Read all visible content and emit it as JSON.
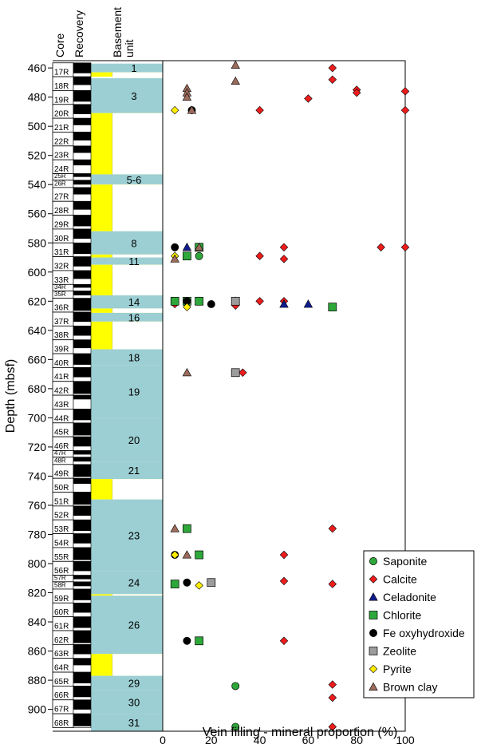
{
  "chart_data": {
    "type": "scatter",
    "ylabel": "Depth (mbsf)",
    "xlabel": "Vein filling - mineral proportion (%)",
    "xlim": [
      0,
      100
    ],
    "ylim": [
      455,
      915
    ],
    "y_reversed": true,
    "xticks": [
      0,
      20,
      40,
      60,
      80,
      100
    ],
    "yticks": [
      460,
      480,
      500,
      520,
      540,
      560,
      580,
      600,
      620,
      640,
      660,
      680,
      700,
      720,
      740,
      760,
      780,
      800,
      820,
      840,
      860,
      880,
      900
    ],
    "columns": {
      "core": "Core",
      "recovery": "Recovery",
      "unit": "Basement\nunit"
    },
    "legend_position": "bottom-right",
    "cores": [
      {
        "label": "17R",
        "top": 456.5,
        "base": 466.0,
        "rec": 0.75
      },
      {
        "label": "18R",
        "top": 466.0,
        "base": 475.5,
        "rec": 0.6
      },
      {
        "label": "19R",
        "top": 475.5,
        "base": 485.0,
        "rec": 0.8
      },
      {
        "label": "20R",
        "top": 485.0,
        "base": 494.5,
        "rec": 0.7
      },
      {
        "label": "21R",
        "top": 494.5,
        "base": 504.0,
        "rec": 0.5
      },
      {
        "label": "22R",
        "top": 504.0,
        "base": 513.5,
        "rec": 0.6
      },
      {
        "label": "23R",
        "top": 513.5,
        "base": 523.0,
        "rec": 0.5
      },
      {
        "label": "24R",
        "top": 523.0,
        "base": 532.5,
        "rec": 0.4
      },
      {
        "label": "25R",
        "top": 532.5,
        "base": 537.0,
        "rec": 0.5
      },
      {
        "label": "26R",
        "top": 537.0,
        "base": 542.0,
        "rec": 0.6
      },
      {
        "label": "27R",
        "top": 542.0,
        "base": 551.5,
        "rec": 0.5
      },
      {
        "label": "28R",
        "top": 551.5,
        "base": 561.0,
        "rec": 0.6
      },
      {
        "label": "29R",
        "top": 561.0,
        "base": 570.5,
        "rec": 0.8
      },
      {
        "label": "30R",
        "top": 570.5,
        "base": 580.0,
        "rec": 0.7
      },
      {
        "label": "31R",
        "top": 580.0,
        "base": 589.5,
        "rec": 0.8
      },
      {
        "label": "32R",
        "top": 589.5,
        "base": 599.0,
        "rec": 0.7
      },
      {
        "label": "33R",
        "top": 599.0,
        "base": 608.5,
        "rec": 0.6
      },
      {
        "label": "34R",
        "top": 608.5,
        "base": 613.0,
        "rec": 0.5
      },
      {
        "label": "35R",
        "top": 613.0,
        "base": 618.0,
        "rec": 0.6
      },
      {
        "label": "36R",
        "top": 618.0,
        "base": 627.5,
        "rec": 0.9
      },
      {
        "label": "37R",
        "top": 627.5,
        "base": 637.0,
        "rec": 0.7
      },
      {
        "label": "38R",
        "top": 637.0,
        "base": 646.5,
        "rec": 0.7
      },
      {
        "label": "39R",
        "top": 646.5,
        "base": 656.0,
        "rec": 0.6
      },
      {
        "label": "40R",
        "top": 656.0,
        "base": 665.5,
        "rec": 0.8
      },
      {
        "label": "41R",
        "top": 665.5,
        "base": 675.0,
        "rec": 0.7
      },
      {
        "label": "42R",
        "top": 675.0,
        "base": 684.5,
        "rec": 0.9
      },
      {
        "label": "43R",
        "top": 684.5,
        "base": 694.0,
        "rec": 0.3
      },
      {
        "label": "44R",
        "top": 694.0,
        "base": 703.5,
        "rec": 0.8
      },
      {
        "label": "45R",
        "top": 703.5,
        "base": 713.0,
        "rec": 0.9
      },
      {
        "label": "46R",
        "top": 713.0,
        "base": 722.5,
        "rec": 0.7
      },
      {
        "label": "47R",
        "top": 722.5,
        "base": 727.0,
        "rec": 0.6
      },
      {
        "label": "48R",
        "top": 727.0,
        "base": 732.0,
        "rec": 0.6
      },
      {
        "label": "49R",
        "top": 732.0,
        "base": 741.5,
        "rec": 0.9
      },
      {
        "label": "50R",
        "top": 741.5,
        "base": 751.0,
        "rec": 0.4
      },
      {
        "label": "51R",
        "top": 751.0,
        "base": 760.5,
        "rec": 0.9
      },
      {
        "label": "52R",
        "top": 760.5,
        "base": 770.0,
        "rec": 0.7
      },
      {
        "label": "53R",
        "top": 770.0,
        "base": 779.5,
        "rec": 0.8
      },
      {
        "label": "54R",
        "top": 779.5,
        "base": 789.0,
        "rec": 0.7
      },
      {
        "label": "55R",
        "top": 789.0,
        "base": 798.5,
        "rec": 0.9
      },
      {
        "label": "56R",
        "top": 798.5,
        "base": 808.0,
        "rec": 0.7
      },
      {
        "label": "57R",
        "top": 808.0,
        "base": 812.5,
        "rec": 0.6
      },
      {
        "label": "58R",
        "top": 812.5,
        "base": 817.5,
        "rec": 0.6
      },
      {
        "label": "59R",
        "top": 817.5,
        "base": 827.0,
        "rec": 0.8
      },
      {
        "label": "60R",
        "top": 827.0,
        "base": 836.5,
        "rec": 0.7
      },
      {
        "label": "61R",
        "top": 836.5,
        "base": 846.0,
        "rec": 0.8
      },
      {
        "label": "62R",
        "top": 846.0,
        "base": 855.5,
        "rec": 0.9
      },
      {
        "label": "63R",
        "top": 855.5,
        "base": 865.0,
        "rec": 0.7
      },
      {
        "label": "64R",
        "top": 865.0,
        "base": 874.5,
        "rec": 0.5
      },
      {
        "label": "65R",
        "top": 874.5,
        "base": 884.0,
        "rec": 0.8
      },
      {
        "label": "66R",
        "top": 884.0,
        "base": 893.5,
        "rec": 0.8
      },
      {
        "label": "67R",
        "top": 893.5,
        "base": 903.0,
        "rec": 0.7
      },
      {
        "label": "68R",
        "top": 903.0,
        "base": 912.5,
        "rec": 0.9
      }
    ],
    "units": [
      {
        "label": "1",
        "top": 457,
        "base": 463,
        "color": "#9ccfd3"
      },
      {
        "label": "",
        "top": 463,
        "base": 466,
        "color": "#ffff00"
      },
      {
        "label": "3",
        "top": 467,
        "base": 491,
        "color": "#9ccfd3"
      },
      {
        "label": "",
        "top": 491,
        "base": 533,
        "color": "#ffff00"
      },
      {
        "label": "5-6",
        "top": 533,
        "base": 540,
        "color": "#9ccfd3"
      },
      {
        "label": "",
        "top": 540,
        "base": 572,
        "color": "#ffff00"
      },
      {
        "label": "8",
        "top": 572,
        "base": 588,
        "color": "#9ccfd3"
      },
      {
        "label": "",
        "top": 588,
        "base": 590,
        "color": "#ffff00"
      },
      {
        "label": "11",
        "top": 590,
        "base": 595,
        "color": "#9ccfd3"
      },
      {
        "label": "",
        "top": 595,
        "base": 616,
        "color": "#ffff00"
      },
      {
        "label": "14",
        "top": 616,
        "base": 625,
        "color": "#9ccfd3"
      },
      {
        "label": "",
        "top": 625,
        "base": 628,
        "color": "#ffff00"
      },
      {
        "label": "16",
        "top": 628,
        "base": 634,
        "color": "#9ccfd3"
      },
      {
        "label": "",
        "top": 634,
        "base": 653,
        "color": "#ffff00"
      },
      {
        "label": "18",
        "top": 653,
        "base": 664,
        "color": "#9ccfd3"
      },
      {
        "label": "19",
        "top": 664,
        "base": 700,
        "color": "#9ccfd3"
      },
      {
        "label": "20",
        "top": 700,
        "base": 730,
        "color": "#9ccfd3"
      },
      {
        "label": "21",
        "top": 730,
        "base": 742,
        "color": "#9ccfd3"
      },
      {
        "label": "",
        "top": 742,
        "base": 756,
        "color": "#ffff00"
      },
      {
        "label": "23",
        "top": 756,
        "base": 805,
        "color": "#9ccfd3"
      },
      {
        "label": "24",
        "top": 805,
        "base": 821,
        "color": "#9ccfd3"
      },
      {
        "label": "",
        "top": 821,
        "base": 822,
        "color": "#ffff00"
      },
      {
        "label": "26",
        "top": 822,
        "base": 862,
        "color": "#9ccfd3"
      },
      {
        "label": "",
        "top": 862,
        "base": 877,
        "color": "#ffff00"
      },
      {
        "label": "29",
        "top": 877,
        "base": 887,
        "color": "#9ccfd3"
      },
      {
        "label": "30",
        "top": 887,
        "base": 903,
        "color": "#9ccfd3"
      },
      {
        "label": "31",
        "top": 903,
        "base": 915,
        "color": "#9ccfd3"
      }
    ],
    "series": [
      {
        "name": "Saponite",
        "marker": "circle",
        "color": "#2ea83a",
        "points": [
          [
            10,
            589
          ],
          [
            15,
            589
          ],
          [
            10,
            776
          ],
          [
            30,
            884
          ],
          [
            30,
            912
          ]
        ]
      },
      {
        "name": "Calcite",
        "marker": "diamond",
        "color": "#ee1c1c",
        "points": [
          [
            70,
            460
          ],
          [
            70,
            468
          ],
          [
            80,
            475
          ],
          [
            80,
            477
          ],
          [
            100,
            476
          ],
          [
            60,
            481
          ],
          [
            40,
            489
          ],
          [
            100,
            489
          ],
          [
            50,
            583
          ],
          [
            90,
            583
          ],
          [
            100,
            583
          ],
          [
            40,
            589
          ],
          [
            50,
            591
          ],
          [
            5,
            622
          ],
          [
            30,
            621
          ],
          [
            40,
            620
          ],
          [
            50,
            620
          ],
          [
            30,
            623
          ],
          [
            33,
            669
          ],
          [
            70,
            776
          ],
          [
            50,
            794
          ],
          [
            50,
            812
          ],
          [
            70,
            814
          ],
          [
            50,
            853
          ],
          [
            70,
            883
          ],
          [
            70,
            892
          ],
          [
            70,
            912
          ]
        ]
      },
      {
        "name": "Celadonite",
        "marker": "triangle",
        "color": "#101c8c",
        "points": [
          [
            10,
            583
          ],
          [
            15,
            620
          ],
          [
            30,
            620
          ],
          [
            50,
            622
          ],
          [
            60,
            622
          ]
        ]
      },
      {
        "name": "Chlorite",
        "marker": "square",
        "color": "#2ea83a",
        "points": [
          [
            15,
            583
          ],
          [
            10,
            589
          ],
          [
            5,
            620
          ],
          [
            10,
            620
          ],
          [
            15,
            620
          ],
          [
            70,
            624
          ],
          [
            10,
            776
          ],
          [
            15,
            794
          ],
          [
            5,
            814
          ],
          [
            15,
            853
          ]
        ]
      },
      {
        "name": "Fe oxyhydroxide",
        "marker": "circle",
        "color": "#000000",
        "points": [
          [
            12,
            489
          ],
          [
            5,
            583
          ],
          [
            10,
            620
          ],
          [
            20,
            622
          ],
          [
            5,
            794
          ],
          [
            10,
            813
          ],
          [
            10,
            853
          ]
        ]
      },
      {
        "name": "Zeolite",
        "marker": "square",
        "color": "#9c9c9c",
        "points": [
          [
            30,
            620
          ],
          [
            30,
            669
          ],
          [
            20,
            813
          ]
        ]
      },
      {
        "name": "Pyrite",
        "marker": "diamond",
        "color": "#ffee00",
        "points": [
          [
            5,
            489
          ],
          [
            5,
            589
          ],
          [
            10,
            624
          ],
          [
            5,
            794
          ],
          [
            15,
            815
          ]
        ]
      },
      {
        "name": "Brown clay",
        "marker": "triangle",
        "color": "#9c6b5b",
        "points": [
          [
            30,
            458
          ],
          [
            30,
            469
          ],
          [
            10,
            474
          ],
          [
            10,
            477
          ],
          [
            10,
            480
          ],
          [
            12,
            489
          ],
          [
            15,
            583
          ],
          [
            5,
            591
          ],
          [
            10,
            669
          ],
          [
            5,
            776
          ],
          [
            10,
            794
          ]
        ]
      }
    ]
  }
}
